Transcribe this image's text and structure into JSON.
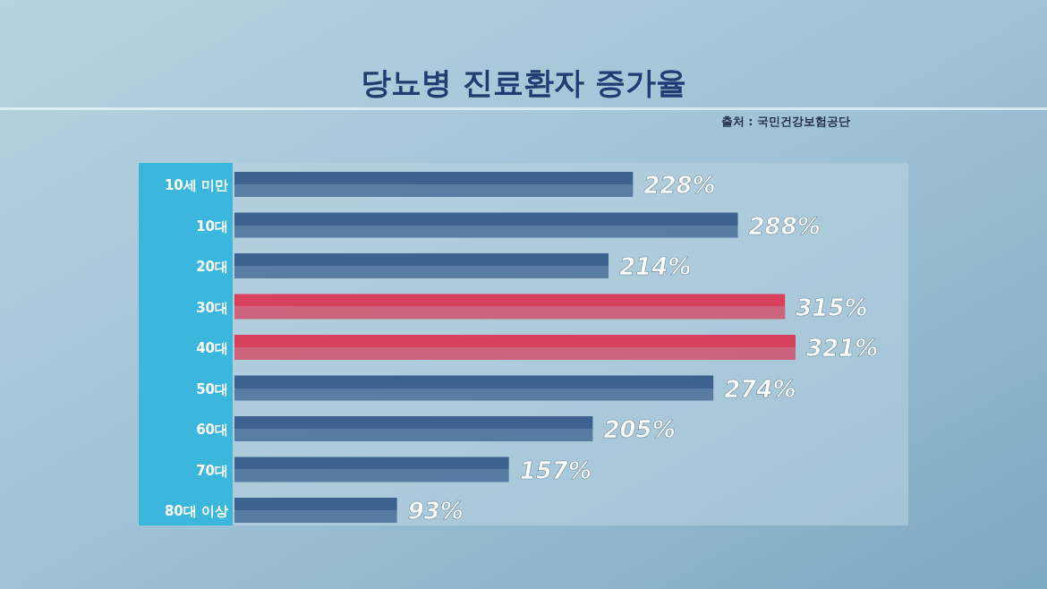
{
  "chart_data": {
    "type": "bar",
    "orientation": "horizontal",
    "title": "당뇨병 진료환자 증가율",
    "annotations": [
      "출처 : 국민건강보험공단"
    ],
    "categories": [
      "10세 미만",
      "10대",
      "20대",
      "30대",
      "40대",
      "50대",
      "60대",
      "70대",
      "80대 이상"
    ],
    "values": [
      228,
      288,
      214,
      315,
      321,
      274,
      205,
      157,
      93
    ],
    "colors": [
      "#3d6290",
      "#3d6290",
      "#3d6290",
      "#d8405c",
      "#d8405c",
      "#3d6290",
      "#3d6290",
      "#3d6290",
      "#3d6290"
    ],
    "value_labels": [
      "228%",
      "288%",
      "214%",
      "315%",
      "321%",
      "274%",
      "205%",
      "157%",
      "93%"
    ]
  }
}
